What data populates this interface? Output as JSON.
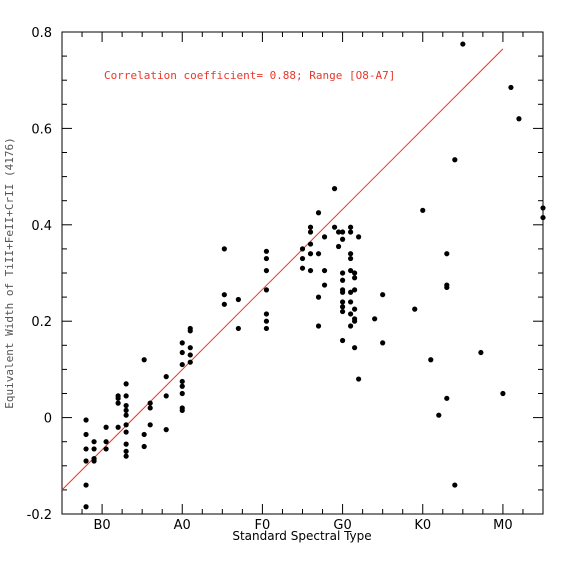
{
  "chart_data": {
    "type": "scatter",
    "title": "",
    "xlabel": "Standard Spectral Type",
    "ylabel": "Equivalent Width of TiII+FeII+CrII (4176)",
    "annotation": "Correlation coefficient= 0.88; Range [O8-A7]",
    "xlim": [
      0,
      12
    ],
    "ylim": [
      -0.2,
      0.8
    ],
    "x_ticks": [
      {
        "value": 1,
        "label": "B0"
      },
      {
        "value": 3,
        "label": "A0"
      },
      {
        "value": 5,
        "label": "F0"
      },
      {
        "value": 7,
        "label": "G0"
      },
      {
        "value": 9,
        "label": "K0"
      },
      {
        "value": 11,
        "label": "M0"
      }
    ],
    "y_ticks": [
      {
        "value": -0.2,
        "label": "-0.2"
      },
      {
        "value": 0,
        "label": "0"
      },
      {
        "value": 0.2,
        "label": "0.2"
      },
      {
        "value": 0.4,
        "label": "0.4"
      },
      {
        "value": 0.6,
        "label": "0.6"
      },
      {
        "value": 0.8,
        "label": "0.8"
      }
    ],
    "grid": false,
    "fit_line": {
      "x": [
        0,
        11
      ],
      "y": [
        -0.15,
        0.765
      ],
      "color": "#e8372a"
    },
    "series": [
      {
        "color": "#000000",
        "points": [
          [
            0.6,
            -0.185
          ],
          [
            0.6,
            -0.14
          ],
          [
            0.6,
            -0.09
          ],
          [
            0.6,
            -0.065
          ],
          [
            0.6,
            -0.035
          ],
          [
            0.6,
            -0.005
          ],
          [
            0.8,
            -0.09
          ],
          [
            0.8,
            -0.085
          ],
          [
            0.8,
            -0.065
          ],
          [
            0.8,
            -0.05
          ],
          [
            1.1,
            -0.065
          ],
          [
            1.1,
            -0.05
          ],
          [
            1.1,
            -0.02
          ],
          [
            1.4,
            -0.02
          ],
          [
            1.4,
            0.03
          ],
          [
            1.4,
            0.04
          ],
          [
            1.4,
            0.045
          ],
          [
            1.6,
            -0.08
          ],
          [
            1.6,
            -0.07
          ],
          [
            1.6,
            -0.055
          ],
          [
            1.6,
            -0.03
          ],
          [
            1.6,
            -0.015
          ],
          [
            1.6,
            0.005
          ],
          [
            1.6,
            0.015
          ],
          [
            1.6,
            0.025
          ],
          [
            1.6,
            0.045
          ],
          [
            1.6,
            0.07
          ],
          [
            2.05,
            -0.06
          ],
          [
            2.05,
            -0.035
          ],
          [
            2.05,
            0.12
          ],
          [
            2.2,
            -0.015
          ],
          [
            2.2,
            0.02
          ],
          [
            2.2,
            0.03
          ],
          [
            2.6,
            -0.025
          ],
          [
            2.6,
            0.045
          ],
          [
            2.6,
            0.085
          ],
          [
            3.0,
            0.015
          ],
          [
            3.0,
            0.02
          ],
          [
            3.0,
            0.05
          ],
          [
            3.0,
            0.065
          ],
          [
            3.0,
            0.075
          ],
          [
            3.0,
            0.11
          ],
          [
            3.0,
            0.135
          ],
          [
            3.0,
            0.155
          ],
          [
            3.2,
            0.115
          ],
          [
            3.2,
            0.13
          ],
          [
            3.2,
            0.145
          ],
          [
            3.2,
            0.18
          ],
          [
            3.2,
            0.185
          ],
          [
            4.05,
            0.235
          ],
          [
            4.05,
            0.255
          ],
          [
            4.05,
            0.35
          ],
          [
            4.4,
            0.185
          ],
          [
            4.4,
            0.245
          ],
          [
            5.1,
            0.185
          ],
          [
            5.1,
            0.2
          ],
          [
            5.1,
            0.215
          ],
          [
            5.1,
            0.265
          ],
          [
            5.1,
            0.305
          ],
          [
            5.1,
            0.33
          ],
          [
            5.1,
            0.345
          ],
          [
            6.0,
            0.31
          ],
          [
            6.0,
            0.33
          ],
          [
            6.0,
            0.35
          ],
          [
            6.2,
            0.305
          ],
          [
            6.2,
            0.34
          ],
          [
            6.2,
            0.36
          ],
          [
            6.2,
            0.385
          ],
          [
            6.2,
            0.395
          ],
          [
            6.4,
            0.19
          ],
          [
            6.4,
            0.25
          ],
          [
            6.4,
            0.34
          ],
          [
            6.4,
            0.425
          ],
          [
            6.55,
            0.275
          ],
          [
            6.55,
            0.305
          ],
          [
            6.55,
            0.375
          ],
          [
            6.8,
            0.395
          ],
          [
            6.8,
            0.475
          ],
          [
            6.9,
            0.355
          ],
          [
            6.9,
            0.385
          ],
          [
            7.0,
            0.16
          ],
          [
            7.0,
            0.22
          ],
          [
            7.0,
            0.23
          ],
          [
            7.0,
            0.24
          ],
          [
            7.0,
            0.26
          ],
          [
            7.0,
            0.265
          ],
          [
            7.0,
            0.285
          ],
          [
            7.0,
            0.3
          ],
          [
            7.0,
            0.37
          ],
          [
            7.0,
            0.385
          ],
          [
            7.2,
            0.19
          ],
          [
            7.2,
            0.215
          ],
          [
            7.2,
            0.24
          ],
          [
            7.2,
            0.26
          ],
          [
            7.2,
            0.305
          ],
          [
            7.2,
            0.33
          ],
          [
            7.2,
            0.34
          ],
          [
            7.2,
            0.385
          ],
          [
            7.2,
            0.395
          ],
          [
            7.3,
            0.145
          ],
          [
            7.3,
            0.2
          ],
          [
            7.3,
            0.205
          ],
          [
            7.3,
            0.225
          ],
          [
            7.3,
            0.265
          ],
          [
            7.3,
            0.29
          ],
          [
            7.3,
            0.3
          ],
          [
            7.4,
            0.08
          ],
          [
            7.4,
            0.375
          ],
          [
            7.8,
            0.205
          ],
          [
            8.0,
            0.155
          ],
          [
            8.0,
            0.255
          ],
          [
            8.8,
            0.225
          ],
          [
            9.0,
            0.43
          ],
          [
            9.2,
            0.12
          ],
          [
            9.4,
            0.005
          ],
          [
            9.6,
            0.04
          ],
          [
            9.6,
            0.27
          ],
          [
            9.6,
            0.275
          ],
          [
            9.6,
            0.34
          ],
          [
            9.8,
            -0.14
          ],
          [
            9.8,
            0.535
          ],
          [
            10.0,
            0.775
          ],
          [
            10.45,
            0.135
          ],
          [
            11.0,
            0.05
          ],
          [
            11.2,
            0.685
          ],
          [
            11.4,
            0.62
          ],
          [
            12.0,
            0.415
          ],
          [
            12.0,
            0.435
          ]
        ]
      }
    ]
  }
}
